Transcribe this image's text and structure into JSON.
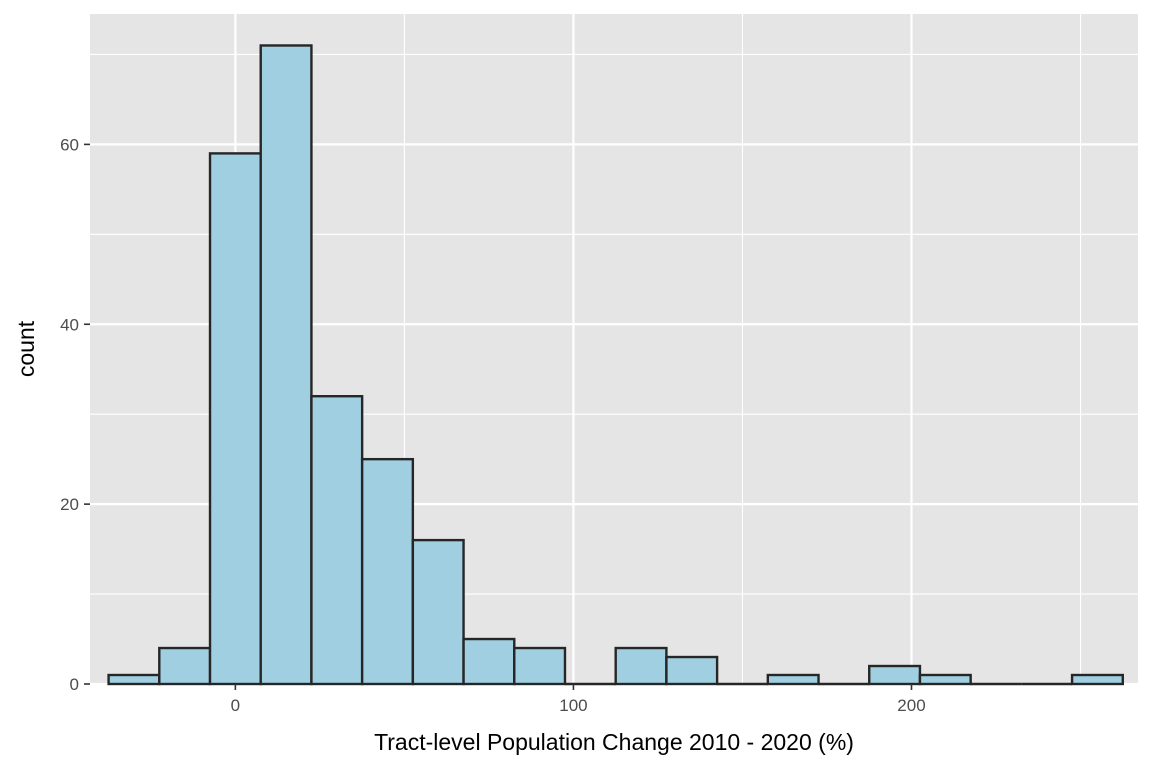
{
  "chart_data": {
    "type": "bar",
    "xlabel": "Tract-level Population Change 2010 - 2020 (%)",
    "ylabel": "count",
    "xlim": [
      -43,
      267
    ],
    "ylim": [
      0,
      74.5
    ],
    "x_ticks": [
      0,
      100,
      200
    ],
    "y_ticks": [
      0,
      20,
      40,
      60
    ],
    "grid": true,
    "colors": {
      "panel": "#e5e5e5",
      "grid": "#ffffff",
      "bar_fill": "#a1cfe2",
      "bar_stroke": "#262626",
      "tick_text": "#4d4d4d",
      "tick_mark": "#333333"
    },
    "bins": [
      {
        "x0": -37.5,
        "x1": -22.5,
        "count": 1
      },
      {
        "x0": -22.5,
        "x1": -7.5,
        "count": 4
      },
      {
        "x0": -7.5,
        "x1": 7.5,
        "count": 59
      },
      {
        "x0": 7.5,
        "x1": 22.5,
        "count": 71
      },
      {
        "x0": 22.5,
        "x1": 37.5,
        "count": 32
      },
      {
        "x0": 37.5,
        "x1": 52.5,
        "count": 25
      },
      {
        "x0": 52.5,
        "x1": 67.5,
        "count": 16
      },
      {
        "x0": 67.5,
        "x1": 82.5,
        "count": 5
      },
      {
        "x0": 82.5,
        "x1": 97.5,
        "count": 4
      },
      {
        "x0": 97.5,
        "x1": 112.5,
        "count": 0
      },
      {
        "x0": 112.5,
        "x1": 127.5,
        "count": 4
      },
      {
        "x0": 127.5,
        "x1": 142.5,
        "count": 3
      },
      {
        "x0": 142.5,
        "x1": 157.5,
        "count": 0
      },
      {
        "x0": 157.5,
        "x1": 172.5,
        "count": 1
      },
      {
        "x0": 172.5,
        "x1": 187.5,
        "count": 0
      },
      {
        "x0": 187.5,
        "x1": 202.5,
        "count": 2
      },
      {
        "x0": 202.5,
        "x1": 217.5,
        "count": 1
      },
      {
        "x0": 217.5,
        "x1": 232.5,
        "count": 0
      },
      {
        "x0": 232.5,
        "x1": 247.5,
        "count": 0
      },
      {
        "x0": 247.5,
        "x1": 262.5,
        "count": 1
      }
    ]
  }
}
